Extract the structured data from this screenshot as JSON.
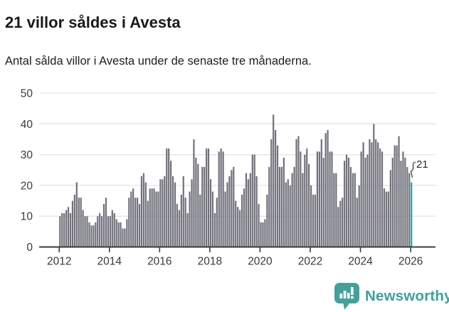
{
  "header": {
    "title": "21 villor såldes i Avesta",
    "subtitle": "Antal sålda villor i Avesta under de senaste tre månaderna."
  },
  "chart_data": {
    "type": "bar",
    "title": "21 villor såldes i Avesta",
    "subtitle": "Antal sålda villor i Avesta under de senaste tre månaderna.",
    "x_tick_labels": [
      "2012",
      "2014",
      "2016",
      "2018",
      "2020",
      "2022",
      "2024",
      "2026"
    ],
    "x_tick_years": [
      2012,
      2014,
      2016,
      2018,
      2020,
      2022,
      2024,
      2026
    ],
    "y_ticks": [
      0,
      10,
      20,
      30,
      40,
      50
    ],
    "ylim": [
      0,
      50
    ],
    "grid": true,
    "x_start": "2012",
    "x_end": "2026",
    "values": [
      10,
      11,
      11,
      12,
      13,
      11,
      15,
      17,
      21,
      16,
      16,
      12,
      10,
      10,
      8,
      7,
      7,
      8,
      10,
      11,
      10,
      14,
      16,
      10,
      10,
      12,
      11,
      9,
      8,
      8,
      6,
      6,
      9,
      16,
      18,
      19,
      16,
      16,
      14,
      23,
      24,
      21,
      15,
      19,
      19,
      19,
      18,
      18,
      22,
      22,
      23,
      32,
      32,
      28,
      23,
      21,
      14,
      12,
      17,
      23,
      16,
      11,
      18,
      22,
      35,
      29,
      27,
      17,
      26,
      26,
      32,
      32,
      22,
      18,
      11,
      16,
      31,
      32,
      31,
      18,
      21,
      23,
      25,
      26,
      15,
      13,
      12,
      17,
      19,
      24,
      22,
      24,
      30,
      30,
      23,
      14,
      8,
      8,
      9,
      17,
      26,
      35,
      43,
      38,
      33,
      26,
      26,
      29,
      21,
      22,
      20,
      24,
      26,
      35,
      36,
      31,
      24,
      30,
      32,
      27,
      20,
      17,
      17,
      31,
      31,
      35,
      29,
      37,
      38,
      31,
      31,
      24,
      24,
      13,
      15,
      16,
      28,
      30,
      29,
      26,
      24,
      24,
      16,
      20,
      31,
      34,
      29,
      30,
      35,
      34,
      40,
      35,
      34,
      32,
      31,
      19,
      18,
      18,
      25,
      29,
      33,
      33,
      36,
      28,
      31,
      29,
      26,
      24,
      21
    ],
    "highlighted_last_value": 21,
    "annotation": {
      "label": "21"
    }
  },
  "colors": {
    "bar": "#71717c",
    "highlight": "#28a2a7",
    "grid": "#e3e3e3",
    "axis": "#3c3c3c",
    "tick_label": "#3a3a3a",
    "logo_teal": "#43a19b",
    "logo_text": "#3ba19c"
  },
  "branding": {
    "name": "Newsworthy"
  }
}
